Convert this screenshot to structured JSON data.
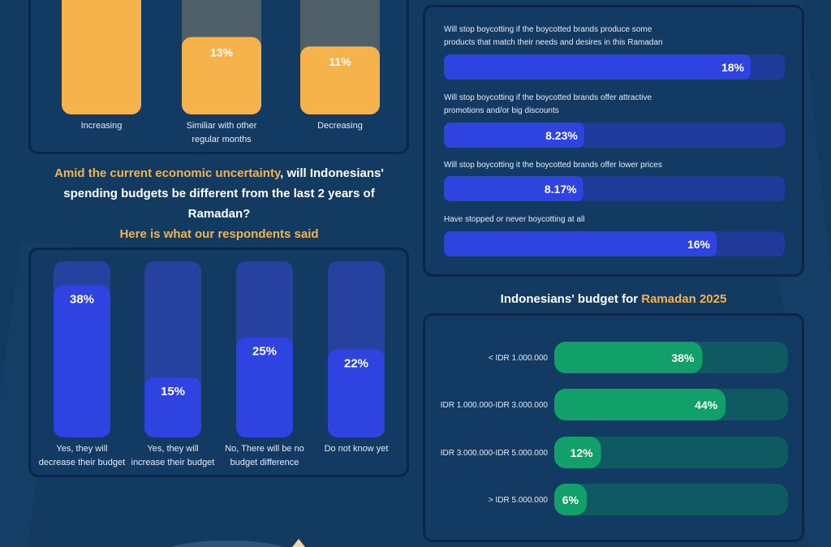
{
  "top_chart": {
    "categories": [
      "Increasing",
      "Similiar with other regular months",
      "Decreasing"
    ],
    "values": [
      null,
      13,
      11
    ],
    "value_labels": [
      "",
      "13%",
      "11%"
    ]
  },
  "question": {
    "highlight": "Amid the current economic uncertainty",
    "rest": ", will Indonesians' spending budgets be different from the last 2 years of Ramadan?",
    "sub": "Here is what our respondents said"
  },
  "chart_data": [
    {
      "type": "bar",
      "categories": [
        "Increasing",
        "Similiar with other regular months",
        "Decreasing"
      ],
      "values": [
        null,
        13,
        11
      ],
      "unit": "%"
    },
    {
      "type": "bar",
      "categories": [
        "Yes, they will decrease their budget",
        "Yes, they will increase their budget",
        "No, There will be no budget difference",
        "Do not know yet"
      ],
      "values": [
        38,
        15,
        25,
        22
      ],
      "value_labels": [
        "38%",
        "15%",
        "25%",
        "22%"
      ],
      "unit": "%"
    },
    {
      "type": "bar",
      "orientation": "horizontal",
      "categories": [
        "Will stop boycotting if the boycotted brands produce some products that match their needs and desires in this Ramadan",
        "Will stop boycotting if the boycotted brands offer attractive promotions and/or big discounts",
        "Will stop boycotting it the boycotted brands offer lower prices",
        "Have stopped or never boycotting at all"
      ],
      "values": [
        18,
        8.23,
        8.17,
        16
      ],
      "value_labels": [
        "18%",
        "8.23%",
        "8.17%",
        "16%"
      ],
      "unit": "%"
    },
    {
      "type": "bar",
      "orientation": "horizontal",
      "title": "Indonesians' budget for Ramadan 2025",
      "categories": [
        "< IDR 1.000.000",
        "IDR 1.000.000-IDR 3.000.000",
        "IDR 3.000.000-IDR 5.000.000",
        "> IDR 5.000.000"
      ],
      "values": [
        38,
        44,
        12,
        6
      ],
      "value_labels": [
        "38%",
        "44%",
        "12%",
        "6%"
      ],
      "unit": "%"
    }
  ],
  "spending_chart": {
    "label_lines": [
      [
        "Yes, they will",
        "decrease their budget"
      ],
      [
        "Yes, they will",
        "increase their budget"
      ],
      [
        "No, There will be no",
        "budget difference"
      ],
      [
        "Do not know yet"
      ]
    ]
  },
  "top_label_lines": [
    [
      "Increasing"
    ],
    [
      "Similiar with other",
      "regular months"
    ],
    [
      "Decreasing"
    ]
  ],
  "boycott_chart": {
    "label_lines": [
      [
        "Will stop boycotting if the boycotted brands produce some",
        "products that match their needs and desires in this Ramadan"
      ],
      [
        "Will stop boycotting if the boycotted brands offer attractive",
        "promotions and/or big discounts"
      ],
      [
        "Will stop boycotting it the boycotted brands offer lower prices"
      ],
      [
        "Have stopped or never boycotting at all"
      ]
    ]
  },
  "budget_section": {
    "title_prefix": "Indonesians' budget for ",
    "title_highlight": "Ramadan 2025"
  },
  "colors": {
    "background": "#133a61",
    "accent_orange": "#f6b24b",
    "bar_blue": "#2f43e0",
    "bar_green": "#12a06a"
  }
}
